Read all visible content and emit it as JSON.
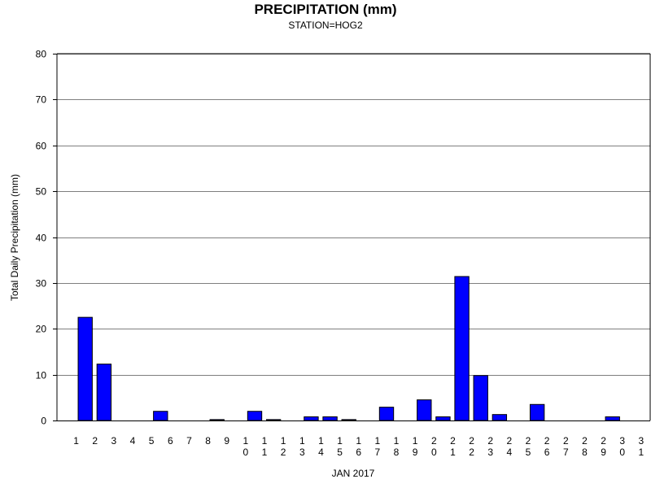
{
  "chart_data": {
    "type": "bar",
    "title": "PRECIPITATION (mm)",
    "subtitle": "STATION=HOG2",
    "xlabel": "JAN 2017",
    "ylabel": "Total Daily Precipitation (mm)",
    "ylim": [
      0,
      80
    ],
    "yticks": [
      "0",
      "10",
      "20",
      "30",
      "40",
      "50",
      "60",
      "70",
      "80"
    ],
    "grid": true,
    "bar_color": "#0000ff",
    "categories": [
      "1",
      "2",
      "3",
      "4",
      "5",
      "6",
      "7",
      "8",
      "9",
      "10",
      "11",
      "12",
      "13",
      "14",
      "15",
      "16",
      "17",
      "18",
      "19",
      "20",
      "21",
      "22",
      "23",
      "24",
      "25",
      "26",
      "27",
      "28",
      "29",
      "30",
      "31"
    ],
    "values": [
      0,
      22.5,
      12.3,
      0,
      0,
      2.0,
      0,
      0,
      0.2,
      0,
      2.0,
      0.2,
      0,
      0.8,
      0.8,
      0.2,
      0,
      2.9,
      0,
      4.5,
      0.8,
      31.4,
      9.8,
      1.3,
      0,
      3.5,
      0,
      0,
      0,
      0.8,
      0
    ]
  }
}
